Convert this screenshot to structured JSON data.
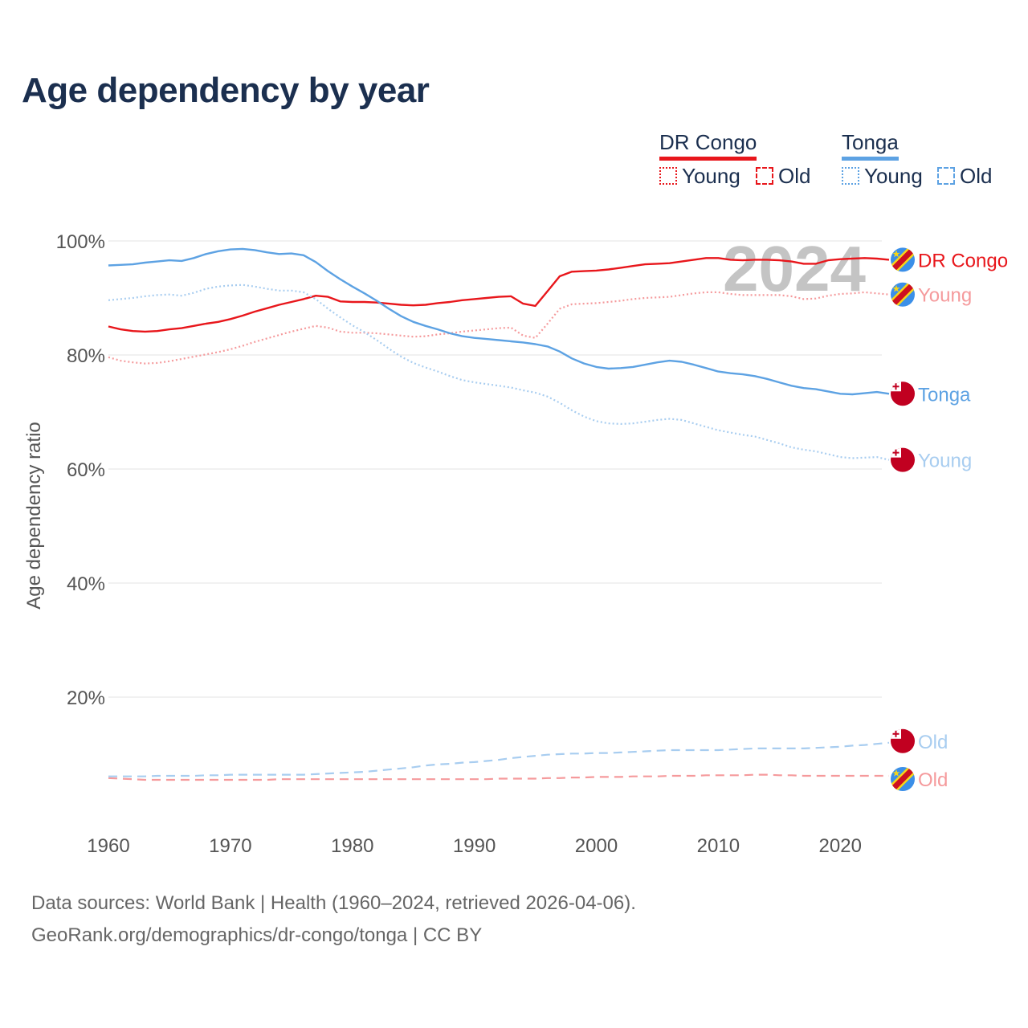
{
  "chart_data": {
    "type": "line",
    "title": "Age dependency by year",
    "ylabel": "Age dependency ratio",
    "xlabel": "",
    "xlim": [
      1960,
      2024
    ],
    "ylim": [
      0,
      100
    ],
    "x_ticks": [
      1960,
      1970,
      1980,
      1990,
      2000,
      2010,
      2020
    ],
    "y_ticks": [
      {
        "value": 20,
        "label": "20%"
      },
      {
        "value": 40,
        "label": "40%"
      },
      {
        "value": 60,
        "label": "60%"
      },
      {
        "value": 80,
        "label": "80%"
      },
      {
        "value": 100,
        "label": "100%"
      }
    ],
    "year_watermark": "2024",
    "legend": {
      "countries": [
        {
          "name": "DR Congo",
          "color": "#e8161b",
          "light_color": "#f59a9c"
        },
        {
          "name": "Tonga",
          "color": "#5da2e3",
          "light_color": "#a8cdf0"
        }
      ],
      "styles": [
        {
          "label": "Young",
          "dash": "dotted"
        },
        {
          "label": "Old",
          "dash": "dashed"
        }
      ]
    },
    "x": [
      1960,
      1961,
      1962,
      1963,
      1964,
      1965,
      1966,
      1967,
      1968,
      1969,
      1970,
      1971,
      1972,
      1973,
      1974,
      1975,
      1976,
      1977,
      1978,
      1979,
      1980,
      1981,
      1982,
      1983,
      1984,
      1985,
      1986,
      1987,
      1988,
      1989,
      1990,
      1991,
      1992,
      1993,
      1994,
      1995,
      1996,
      1997,
      1998,
      1999,
      2000,
      2001,
      2002,
      2003,
      2004,
      2005,
      2006,
      2007,
      2008,
      2009,
      2010,
      2011,
      2012,
      2013,
      2014,
      2015,
      2016,
      2017,
      2018,
      2019,
      2020,
      2021,
      2022,
      2023,
      2024
    ],
    "series": [
      {
        "name": "DR Congo",
        "country": "DR Congo",
        "kind": "total",
        "end_label": "DR Congo",
        "values": [
          85.0,
          84.5,
          84.2,
          84.1,
          84.2,
          84.5,
          84.7,
          85.1,
          85.5,
          85.8,
          86.3,
          86.9,
          87.6,
          88.2,
          88.8,
          89.3,
          89.8,
          90.4,
          90.2,
          89.4,
          89.3,
          89.3,
          89.2,
          89.0,
          88.8,
          88.7,
          88.8,
          89.1,
          89.3,
          89.6,
          89.8,
          90.0,
          90.2,
          90.3,
          89.0,
          88.6,
          91.2,
          93.8,
          94.6,
          94.7,
          94.8,
          95.0,
          95.3,
          95.6,
          95.9,
          96.0,
          96.1,
          96.4,
          96.7,
          97.0,
          97.0,
          96.7,
          96.6,
          96.7,
          96.7,
          96.6,
          96.4,
          96.0,
          96.0,
          96.6,
          96.8,
          96.9,
          97.0,
          96.9,
          96.7
        ]
      },
      {
        "name": "DR Congo Young",
        "country": "DR Congo",
        "kind": "young",
        "end_label": "Young",
        "values": [
          79.6,
          79.0,
          78.7,
          78.5,
          78.6,
          78.9,
          79.3,
          79.7,
          80.1,
          80.5,
          81.0,
          81.6,
          82.3,
          82.9,
          83.5,
          84.1,
          84.6,
          85.1,
          84.8,
          84.1,
          83.9,
          83.9,
          83.8,
          83.6,
          83.4,
          83.2,
          83.3,
          83.6,
          83.8,
          84.1,
          84.3,
          84.5,
          84.7,
          84.8,
          83.4,
          83.0,
          85.5,
          88.1,
          88.9,
          89.0,
          89.1,
          89.3,
          89.5,
          89.8,
          90.0,
          90.1,
          90.2,
          90.5,
          90.8,
          91.0,
          91.0,
          90.7,
          90.5,
          90.5,
          90.5,
          90.5,
          90.3,
          89.8,
          89.9,
          90.4,
          90.7,
          90.8,
          91.0,
          90.8,
          90.6
        ]
      },
      {
        "name": "DR Congo Old",
        "country": "DR Congo",
        "kind": "old",
        "end_label": "Old",
        "values": [
          5.8,
          5.7,
          5.6,
          5.5,
          5.5,
          5.5,
          5.5,
          5.5,
          5.5,
          5.5,
          5.5,
          5.5,
          5.5,
          5.5,
          5.6,
          5.6,
          5.6,
          5.6,
          5.6,
          5.6,
          5.6,
          5.6,
          5.6,
          5.6,
          5.6,
          5.6,
          5.6,
          5.6,
          5.6,
          5.6,
          5.6,
          5.6,
          5.7,
          5.7,
          5.7,
          5.7,
          5.8,
          5.8,
          5.9,
          5.9,
          6.0,
          6.0,
          6.0,
          6.1,
          6.1,
          6.1,
          6.2,
          6.2,
          6.2,
          6.3,
          6.3,
          6.3,
          6.3,
          6.4,
          6.4,
          6.3,
          6.3,
          6.2,
          6.2,
          6.2,
          6.2,
          6.2,
          6.2,
          6.2,
          6.2
        ]
      },
      {
        "name": "Tonga",
        "country": "Tonga",
        "kind": "total",
        "end_label": "Tonga",
        "values": [
          95.7,
          95.8,
          95.9,
          96.2,
          96.4,
          96.6,
          96.5,
          97.0,
          97.7,
          98.2,
          98.5,
          98.6,
          98.4,
          98.0,
          97.7,
          97.8,
          97.5,
          96.3,
          94.7,
          93.3,
          92.0,
          90.8,
          89.5,
          88.1,
          86.8,
          85.8,
          85.1,
          84.5,
          83.8,
          83.3,
          83.0,
          82.8,
          82.6,
          82.4,
          82.2,
          81.9,
          81.5,
          80.6,
          79.4,
          78.5,
          77.9,
          77.6,
          77.7,
          77.9,
          78.3,
          78.7,
          79.0,
          78.8,
          78.3,
          77.7,
          77.1,
          76.8,
          76.6,
          76.3,
          75.8,
          75.2,
          74.6,
          74.2,
          74.0,
          73.6,
          73.2,
          73.1,
          73.3,
          73.5,
          73.2
        ]
      },
      {
        "name": "Tonga Young",
        "country": "Tonga",
        "kind": "young",
        "end_label": "Young",
        "values": [
          89.6,
          89.8,
          90.0,
          90.3,
          90.5,
          90.6,
          90.4,
          90.9,
          91.6,
          92.0,
          92.2,
          92.3,
          92.0,
          91.6,
          91.3,
          91.3,
          91.0,
          89.8,
          88.1,
          86.6,
          85.2,
          84.0,
          82.6,
          81.1,
          79.7,
          78.6,
          77.8,
          77.1,
          76.3,
          75.6,
          75.2,
          74.9,
          74.6,
          74.3,
          73.8,
          73.4,
          72.7,
          71.6,
          70.3,
          69.2,
          68.4,
          68.0,
          67.9,
          68.0,
          68.3,
          68.6,
          68.8,
          68.6,
          68.0,
          67.4,
          66.8,
          66.4,
          66.0,
          65.7,
          65.1,
          64.5,
          63.8,
          63.4,
          63.1,
          62.6,
          62.1,
          61.9,
          62.0,
          62.1,
          61.6
        ]
      },
      {
        "name": "Tonga Old",
        "country": "Tonga",
        "kind": "old",
        "end_label": "Old",
        "values": [
          6.1,
          6.1,
          6.1,
          6.1,
          6.2,
          6.2,
          6.2,
          6.2,
          6.3,
          6.3,
          6.4,
          6.4,
          6.4,
          6.4,
          6.4,
          6.4,
          6.4,
          6.5,
          6.6,
          6.7,
          6.8,
          6.9,
          7.1,
          7.3,
          7.5,
          7.7,
          8.0,
          8.2,
          8.3,
          8.5,
          8.6,
          8.8,
          9.0,
          9.3,
          9.5,
          9.7,
          9.9,
          10.0,
          10.1,
          10.1,
          10.2,
          10.2,
          10.3,
          10.4,
          10.5,
          10.6,
          10.7,
          10.7,
          10.7,
          10.7,
          10.7,
          10.8,
          10.9,
          11.0,
          11.0,
          11.0,
          11.0,
          11.0,
          11.1,
          11.2,
          11.3,
          11.5,
          11.6,
          11.8,
          12.0
        ]
      }
    ]
  },
  "source": {
    "line1": "Data sources: World Bank | Health (1960–2024, retrieved 2026-04-06).",
    "line2": "GeoRank.org/demographics/dr-congo/tonga | CC BY"
  }
}
